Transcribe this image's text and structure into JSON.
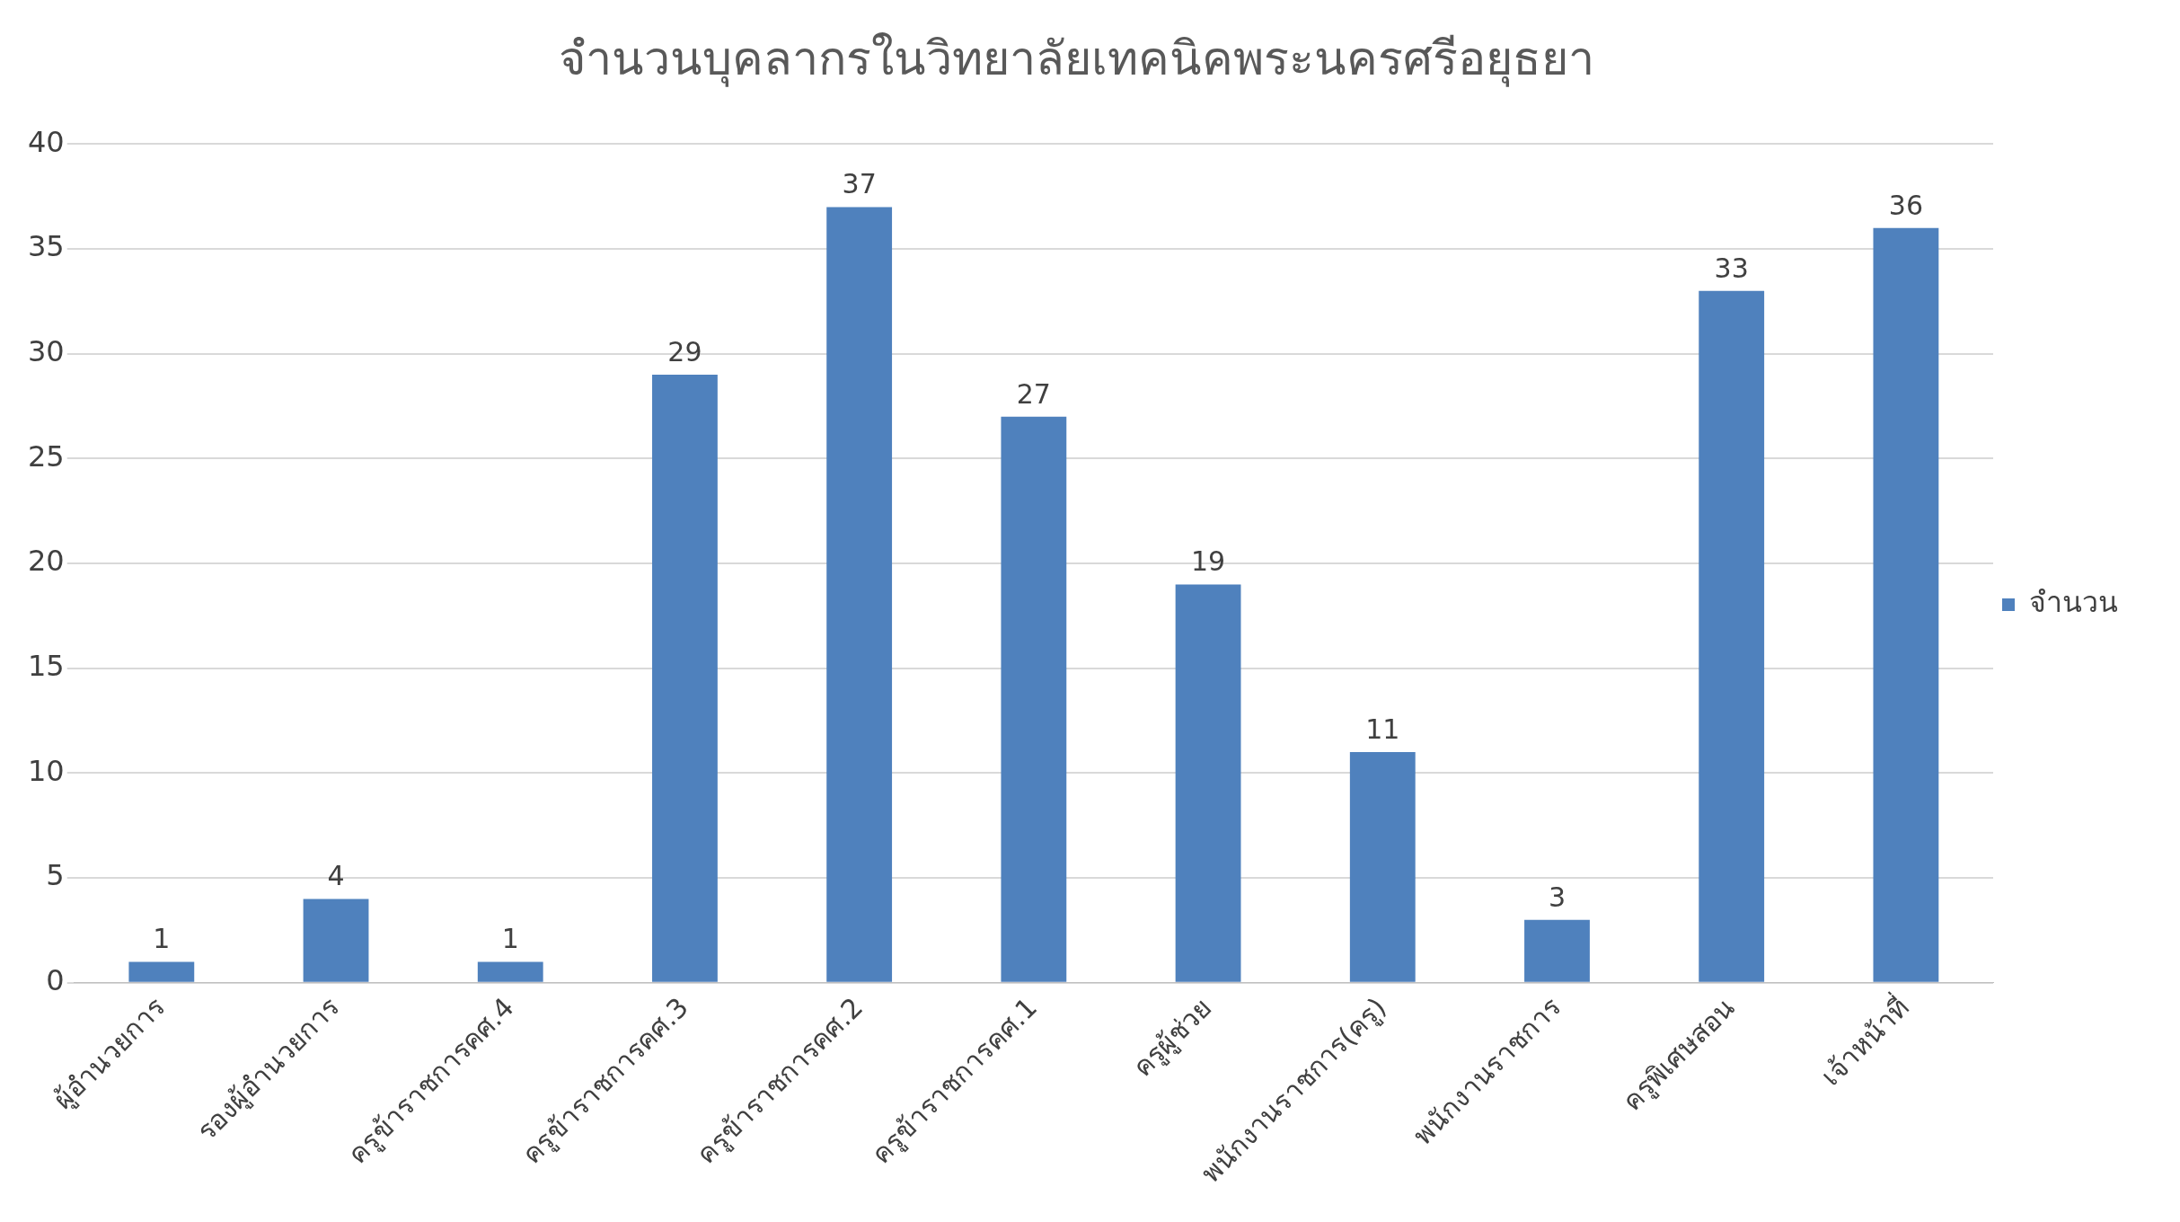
{
  "chart_data": {
    "type": "bar",
    "title": "จำนวนบุคลากรในวิทยาลัยเทคนิคพระนครศรีอยุธยา",
    "categories": [
      "ผู้อำนวยการ",
      "รองผู้อำนวยการ",
      "ครูข้าราชการคศ.4",
      "ครูข้าราชการคศ.3",
      "ครูข้าราชการคศ.2",
      "ครูข้าราชการคศ.1",
      "ครูผู้ช่วย",
      "พนักงานราชการ(ครู)",
      "พนักงานราชการ",
      "ครูพิเศษสอน",
      "เจ้าหน้าที่"
    ],
    "series": [
      {
        "name": "จำนวน",
        "color": "#4f81bd",
        "values": [
          1,
          4,
          1,
          29,
          37,
          27,
          19,
          11,
          3,
          33,
          36
        ]
      }
    ],
    "ylim": [
      0,
      40
    ],
    "yticks": [
      0,
      5,
      10,
      15,
      20,
      25,
      30,
      35,
      40
    ],
    "grid": "y",
    "legend": "right",
    "data_labels": true
  }
}
